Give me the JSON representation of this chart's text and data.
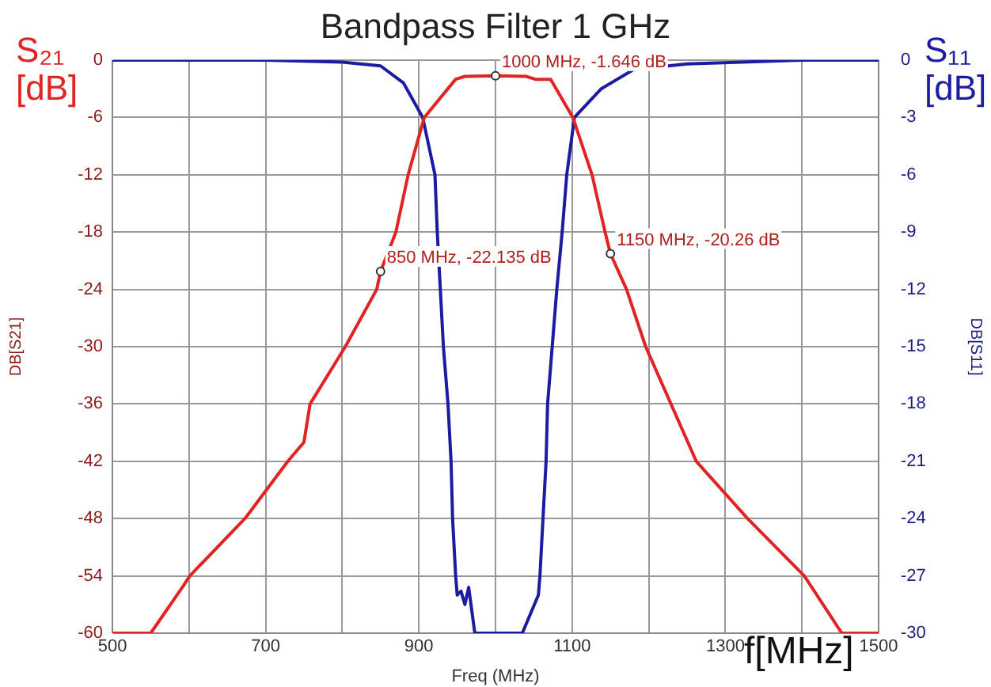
{
  "chart_data": {
    "type": "line",
    "title": "Bandpass Filter 1 GHz",
    "xlabel": "Freq (MHz)",
    "ylabel": "DB[S21]",
    "y2label": "DB[S11]",
    "xlim": [
      500,
      1500
    ],
    "xticks": [
      500,
      {
        "value": 600,
        "label": null
      },
      700,
      {
        "value": 800,
        "label": null
      },
      900,
      {
        "value": 1000,
        "label": null
      },
      1100,
      {
        "value": 1200,
        "label": null
      },
      1300,
      {
        "value": 1400,
        "label": null
      },
      1500
    ],
    "ylim": [
      -60,
      0
    ],
    "yticks": [
      -60,
      -54,
      -48,
      -42,
      -36,
      -30,
      -24,
      -18,
      -12,
      -6,
      0
    ],
    "y2lim": [
      -30,
      0
    ],
    "y2ticks": [
      -30,
      -27,
      -24,
      -21,
      -18,
      -15,
      -12,
      -9,
      -6,
      -3,
      0
    ],
    "grid": true,
    "legend": false,
    "marker": "none",
    "line_style": "solid",
    "series": [
      {
        "color": "#e02424",
        "x": [
          500,
          550,
          593,
          601,
          673,
          729,
          750,
          758,
          804,
          845,
          850,
          870,
          886,
          907,
          948,
          960,
          1000,
          1040,
          1052,
          1072,
          1101,
          1126,
          1143,
          1150,
          1171,
          1196,
          1229,
          1262,
          1329,
          1403,
          1452,
          1500
        ],
        "values": [
          -60,
          -60,
          -55,
          -54,
          -48,
          -42,
          -40,
          -36,
          -30,
          -24,
          -22.135,
          -18,
          -12,
          -6,
          -2,
          -1.7,
          -1.646,
          -1.7,
          -2,
          -2,
          -6,
          -12,
          -18,
          -20.26,
          -24,
          -30,
          -36,
          -42,
          -48,
          -54,
          -60,
          -60
        ]
      },
      {
        "color": "#1c1ca0",
        "axis": "y2",
        "x": [
          500,
          700,
          800,
          850,
          880,
          905,
          921,
          924,
          932,
          938,
          942,
          944,
          948,
          950,
          955,
          960,
          965,
          973,
          1035,
          1056,
          1058,
          1062,
          1066,
          1068,
          1074,
          1080,
          1087,
          1093,
          1103,
          1138,
          1180,
          1250,
          1400,
          1500
        ],
        "values": [
          0,
          0,
          -0.1,
          -0.3,
          -1.2,
          -3,
          -6,
          -9,
          -15,
          -18,
          -21,
          -24,
          -27,
          -28,
          -27.8,
          -28.5,
          -27.6,
          -30,
          -30,
          -28,
          -27,
          -24,
          -21,
          -18,
          -15,
          -12,
          -9,
          -6,
          -3,
          -1.5,
          -0.5,
          -0.2,
          0,
          0
        ]
      }
    ],
    "annotations": [
      {
        "text": "1000 MHz, -1.646 dB",
        "x": 1000,
        "y": -1.646
      },
      {
        "text": "850 MHz, -22.135 dB",
        "x": 850,
        "y": -22.135
      },
      {
        "text": "1150 MHz, -20.26 dB",
        "x": 1150,
        "y": -20.26
      },
      "S₂₁ [dB]",
      "S₁₁ [dB]",
      "f[MHz]"
    ]
  }
}
